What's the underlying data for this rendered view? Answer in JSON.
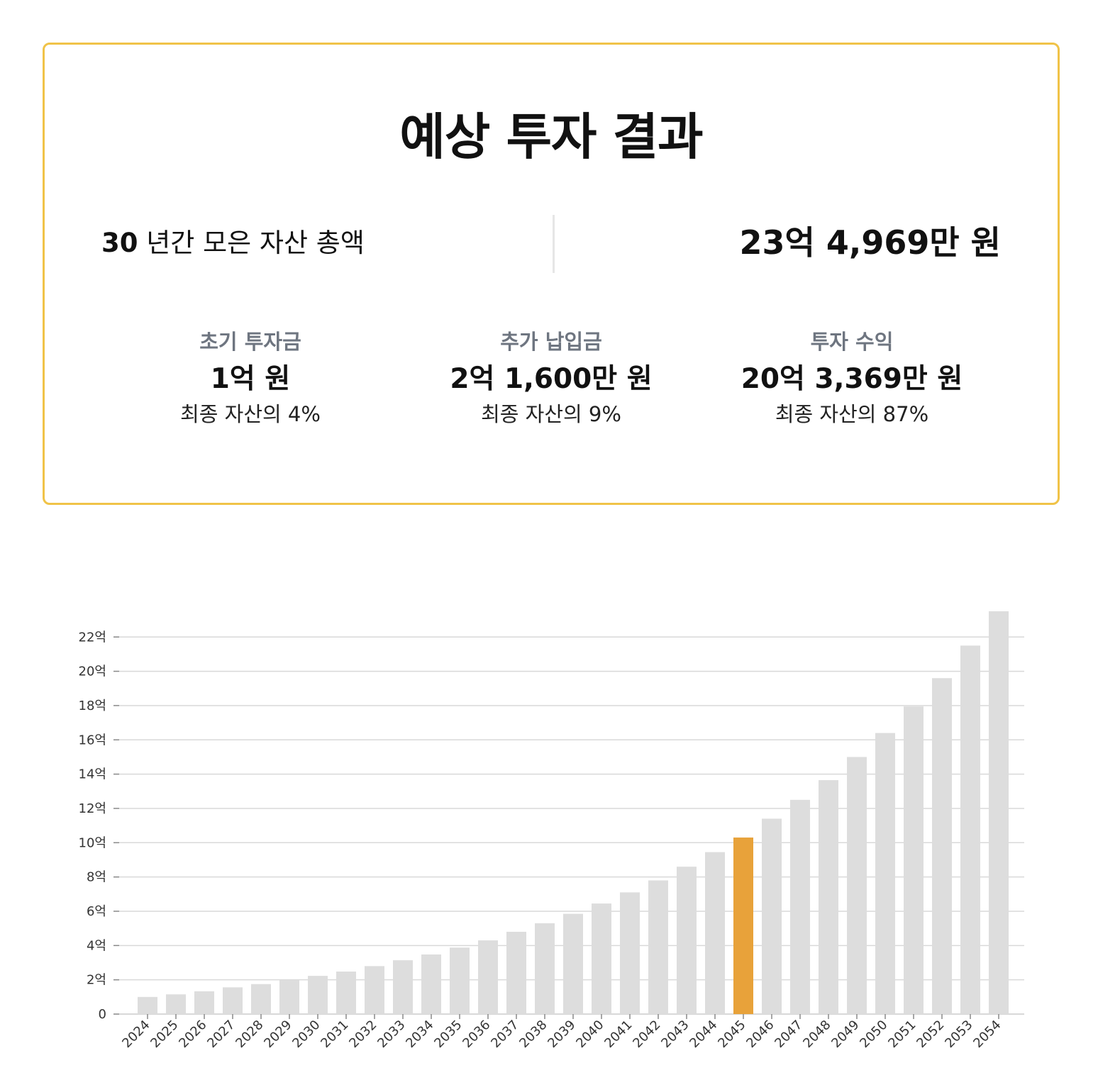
{
  "card": {
    "title": "예상 투자 결과",
    "total_years": "30",
    "total_label": "년간 모은 자산 총액",
    "total_value": "23억 4,969만 원",
    "stats": [
      {
        "label": "초기 투자금",
        "value": "1억 원",
        "share": "최종 자산의 4%"
      },
      {
        "label": "추가 납입금",
        "value": "2억 1,600만 원",
        "share": "최종 자산의 9%"
      },
      {
        "label": "투자 수익",
        "value": "20억 3,369만 원",
        "share": "최종 자산의 87%"
      }
    ]
  },
  "colors": {
    "card_border": "#f0c348",
    "bar": "#dddddd",
    "bar_highlight": "#e8a23a",
    "gridline": "#d9d9d9",
    "stat_label": "#6e7580"
  },
  "chart_data": {
    "type": "bar",
    "title": "",
    "xlabel": "",
    "ylabel": "",
    "ylim": [
      0,
      23.5
    ],
    "grid": true,
    "y_ticks": [
      {
        "value": 0,
        "label": "0"
      },
      {
        "value": 2,
        "label": "2억"
      },
      {
        "value": 4,
        "label": "4억"
      },
      {
        "value": 6,
        "label": "6억"
      },
      {
        "value": 8,
        "label": "8억"
      },
      {
        "value": 10,
        "label": "10억"
      },
      {
        "value": 12,
        "label": "12억"
      },
      {
        "value": 14,
        "label": "14억"
      },
      {
        "value": 16,
        "label": "16억"
      },
      {
        "value": 18,
        "label": "18억"
      },
      {
        "value": 20,
        "label": "20억"
      },
      {
        "value": 22,
        "label": "22억"
      }
    ],
    "categories": [
      "2024",
      "2025",
      "2026",
      "2027",
      "2028",
      "2029",
      "2030",
      "2031",
      "2032",
      "2033",
      "2034",
      "2035",
      "2036",
      "2037",
      "2038",
      "2039",
      "2040",
      "2041",
      "2042",
      "2043",
      "2044",
      "2045",
      "2046",
      "2047",
      "2048",
      "2049",
      "2050",
      "2051",
      "2052",
      "2053",
      "2054"
    ],
    "values": [
      1.0,
      1.15,
      1.33,
      1.56,
      1.75,
      2.0,
      2.23,
      2.48,
      2.8,
      3.14,
      3.48,
      3.88,
      4.3,
      4.8,
      5.3,
      5.85,
      6.45,
      7.1,
      7.8,
      8.6,
      9.45,
      10.3,
      11.4,
      12.5,
      13.65,
      15.0,
      16.4,
      17.95,
      19.6,
      21.5,
      23.5
    ],
    "highlight_category": "2045"
  }
}
